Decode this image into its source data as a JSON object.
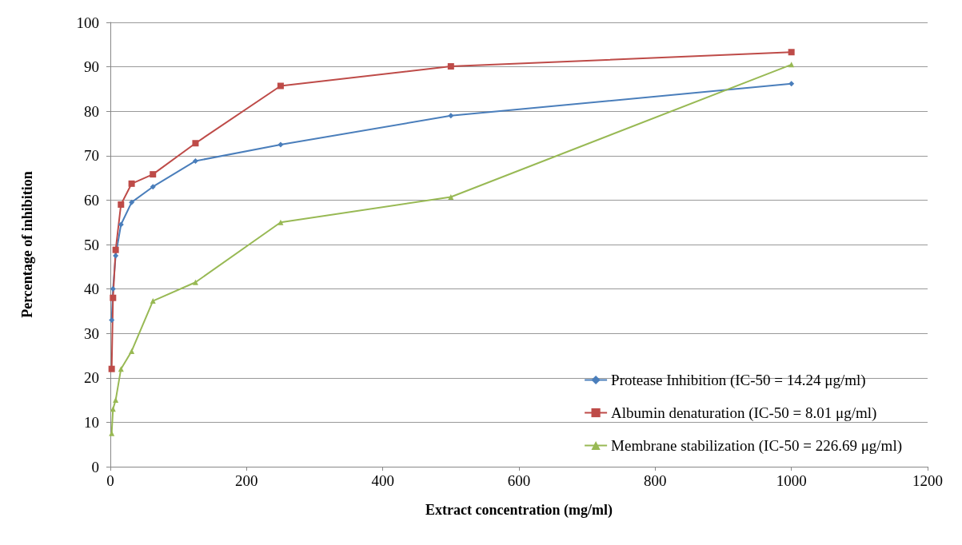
{
  "chart_data": {
    "type": "line",
    "xlabel": "Extract concentration (mg/ml)",
    "ylabel": "Percentage of inhibition",
    "x": [
      1.95,
      3.9,
      7.8,
      15.6,
      31.25,
      62.5,
      125,
      250,
      500,
      1000
    ],
    "series": [
      {
        "name": "Protease Inhibition (IC-50 = 14.24 μg/ml)",
        "color": "#4a7ebb",
        "marker": "diamond",
        "values": [
          33,
          40,
          47.5,
          54.5,
          59.5,
          63,
          68.8,
          72.5,
          79,
          86.2
        ]
      },
      {
        "name": "Albumin denaturation (IC-50 = 8.01 μg/ml)",
        "color": "#be4b48",
        "marker": "square",
        "values": [
          22,
          38,
          48.8,
          59,
          63.7,
          65.8,
          72.8,
          85.7,
          90.1,
          93.3
        ]
      },
      {
        "name": "Membrane stabilization (IC-50 = 226.69 μg/ml)",
        "color": "#98b954",
        "marker": "triangle",
        "values": [
          7.5,
          13,
          15,
          22,
          26,
          37.3,
          41.5,
          55,
          60.7,
          90.5
        ]
      }
    ],
    "xlim": [
      0,
      1200
    ],
    "xticks": [
      0,
      200,
      400,
      600,
      800,
      1000,
      1200
    ],
    "ylim": [
      0,
      100
    ],
    "yticks": [
      0,
      10,
      20,
      30,
      40,
      50,
      60,
      70,
      80,
      90,
      100
    ],
    "grid": "y",
    "legend": "bottom right",
    "line_style": "solid"
  }
}
